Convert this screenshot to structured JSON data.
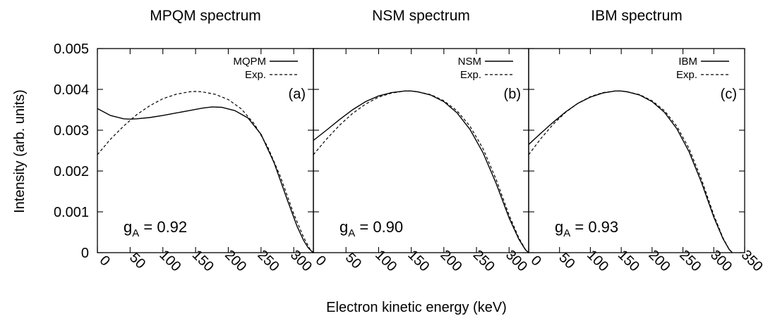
{
  "axes": {
    "y_label": "Intensity (arb. units)",
    "x_label": "Electron kinetic energy (keV)"
  },
  "chart_data": [
    {
      "type": "line",
      "title": "MPQM spectrum",
      "panel_tag": "(a)",
      "annotation": {
        "g": "g",
        "sub": "A",
        "value": " = 0.92"
      },
      "xlim": [
        0,
        330
      ],
      "ylim": [
        0,
        0.005
      ],
      "x_ticks": [
        0,
        50,
        100,
        150,
        200,
        250,
        300
      ],
      "y_ticks": [
        "0",
        "0.001",
        "0.002",
        "0.003",
        "0.004",
        "0.005"
      ],
      "series": [
        {
          "name": "MQPM",
          "style": "solid",
          "x": [
            0,
            20,
            40,
            50,
            60,
            80,
            100,
            120,
            140,
            160,
            175,
            190,
            210,
            230,
            250,
            270,
            290,
            305,
            315,
            322,
            327,
            330
          ],
          "y": [
            0.00353,
            0.00336,
            0.00328,
            0.00327,
            0.00328,
            0.00331,
            0.00336,
            0.00342,
            0.00348,
            0.00354,
            0.00357,
            0.00356,
            0.00348,
            0.0033,
            0.0029,
            0.0022,
            0.0013,
            0.00065,
            0.0003,
            0.00012,
            4e-05,
            0.0
          ]
        },
        {
          "name": "Exp.",
          "style": "dashed",
          "x": [
            0,
            20,
            40,
            60,
            80,
            100,
            120,
            140,
            150,
            160,
            180,
            200,
            220,
            240,
            260,
            280,
            300,
            315,
            325,
            330
          ],
          "y": [
            0.0024,
            0.00278,
            0.0031,
            0.00338,
            0.0036,
            0.00377,
            0.00388,
            0.00394,
            0.00395,
            0.00394,
            0.00388,
            0.00375,
            0.00352,
            0.00315,
            0.0026,
            0.00185,
            0.00095,
            0.00038,
            8e-05,
            0.0
          ]
        }
      ]
    },
    {
      "type": "line",
      "title": "NSM spectrum",
      "panel_tag": "(b)",
      "annotation": {
        "g": "g",
        "sub": "A",
        "value": " = 0.90"
      },
      "xlim": [
        0,
        330
      ],
      "ylim": [
        0,
        0.005
      ],
      "x_ticks": [
        0,
        50,
        100,
        150,
        200,
        250,
        300
      ],
      "series": [
        {
          "name": "NSM",
          "style": "solid",
          "x": [
            0,
            20,
            40,
            60,
            80,
            100,
            120,
            140,
            150,
            160,
            180,
            200,
            220,
            240,
            260,
            280,
            300,
            315,
            325,
            330
          ],
          "y": [
            0.00275,
            0.003,
            0.00326,
            0.0035,
            0.0037,
            0.00384,
            0.00392,
            0.00396,
            0.00396,
            0.00394,
            0.00386,
            0.0037,
            0.00343,
            0.00302,
            0.00245,
            0.0017,
            0.00085,
            0.00033,
            7e-05,
            0.0
          ]
        },
        {
          "name": "Exp.",
          "style": "dashed",
          "x": [
            0,
            20,
            40,
            60,
            80,
            100,
            120,
            140,
            150,
            160,
            180,
            200,
            220,
            240,
            260,
            280,
            300,
            315,
            325,
            330
          ],
          "y": [
            0.0024,
            0.00278,
            0.00312,
            0.00341,
            0.00364,
            0.00381,
            0.00391,
            0.00396,
            0.00396,
            0.00394,
            0.00387,
            0.00372,
            0.00348,
            0.0031,
            0.00255,
            0.0018,
            0.00092,
            0.00036,
            8e-05,
            0.0
          ]
        }
      ]
    },
    {
      "type": "line",
      "title": "IBM spectrum",
      "panel_tag": "(c)",
      "annotation": {
        "g": "g",
        "sub": "A",
        "value": " = 0.93"
      },
      "xlim": [
        0,
        350
      ],
      "ylim": [
        0,
        0.005
      ],
      "x_ticks": [
        0,
        50,
        100,
        150,
        200,
        250,
        300,
        350
      ],
      "series": [
        {
          "name": "IBM",
          "style": "solid",
          "x": [
            0,
            20,
            40,
            60,
            80,
            100,
            120,
            140,
            150,
            160,
            180,
            200,
            220,
            240,
            260,
            280,
            300,
            315,
            325,
            330
          ],
          "y": [
            0.00265,
            0.00293,
            0.0032,
            0.00345,
            0.00366,
            0.00381,
            0.00391,
            0.00396,
            0.00396,
            0.00394,
            0.00386,
            0.0037,
            0.00344,
            0.00304,
            0.00247,
            0.00172,
            0.00087,
            0.00034,
            8e-05,
            0.0
          ]
        },
        {
          "name": "Exp.",
          "style": "dashed",
          "x": [
            0,
            20,
            40,
            60,
            80,
            100,
            120,
            140,
            150,
            160,
            180,
            200,
            220,
            240,
            260,
            280,
            300,
            315,
            325,
            330
          ],
          "y": [
            0.0024,
            0.0028,
            0.00315,
            0.00344,
            0.00366,
            0.00382,
            0.00392,
            0.00396,
            0.00396,
            0.00394,
            0.00387,
            0.00372,
            0.00348,
            0.0031,
            0.00255,
            0.0018,
            0.00092,
            0.00036,
            8e-05,
            0.0
          ]
        }
      ]
    }
  ]
}
